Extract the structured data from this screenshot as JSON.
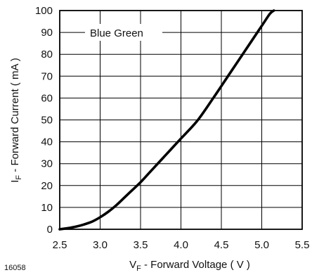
{
  "chart_data": {
    "type": "line",
    "figure_id": "16058",
    "x_label": {
      "main": "V",
      "sub": "F",
      "rest": "- Forward Voltage ( V )"
    },
    "y_label": {
      "main": "I",
      "sub": "F",
      "rest": "- Forward Current ( mA )"
    },
    "xlim": [
      2.5,
      5.5
    ],
    "ylim": [
      0,
      100
    ],
    "x_ticks": [
      "2.5",
      "3.0",
      "3.5",
      "4.0",
      "4.5",
      "5.0",
      "5.5"
    ],
    "y_ticks": [
      "0",
      "10",
      "20",
      "30",
      "40",
      "50",
      "60",
      "70",
      "80",
      "90",
      "100"
    ],
    "grid": true,
    "series": [
      {
        "name": "Blue Green",
        "color": "#000000",
        "x": [
          2.5,
          2.6,
          2.7,
          2.8,
          2.9,
          3.0,
          3.1,
          3.2,
          3.3,
          3.4,
          3.5,
          3.6,
          3.7,
          3.8,
          3.9,
          4.0,
          4.2,
          4.4,
          4.6,
          4.8,
          5.0,
          5.1,
          5.15
        ],
        "y": [
          0,
          0.5,
          1.2,
          2.2,
          3.5,
          5.5,
          8,
          11,
          14.5,
          18,
          21.5,
          25.5,
          29.5,
          33.5,
          37.5,
          41.5,
          49.5,
          60,
          71,
          82,
          93,
          98.5,
          100
        ]
      }
    ]
  }
}
